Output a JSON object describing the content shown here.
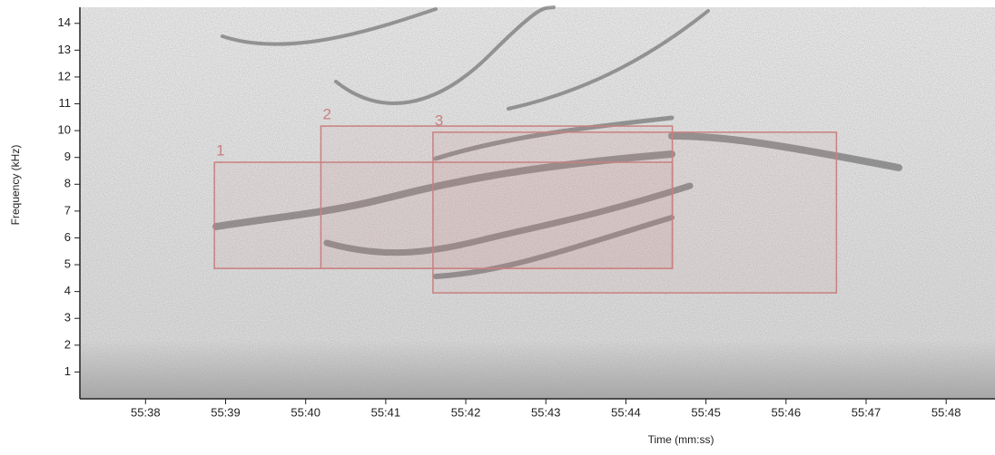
{
  "chart_data": {
    "type": "spectrogram",
    "xlabel": "Time (mm:ss)",
    "ylabel": "Frequency (kHz)",
    "xlim": [
      3337.18,
      3348.61
    ],
    "ylim": [
      0,
      14.6
    ],
    "xticks": [
      {
        "value": 3338,
        "label": "55:38"
      },
      {
        "value": 3339,
        "label": "55:39"
      },
      {
        "value": 3340,
        "label": "55:40"
      },
      {
        "value": 3341,
        "label": "55:41"
      },
      {
        "value": 3342,
        "label": "55:42"
      },
      {
        "value": 3343,
        "label": "55:43"
      },
      {
        "value": 3344,
        "label": "55:44"
      },
      {
        "value": 3345,
        "label": "55:45"
      },
      {
        "value": 3346,
        "label": "55:46"
      },
      {
        "value": 3347,
        "label": "55:47"
      },
      {
        "value": 3348,
        "label": "55:48"
      }
    ],
    "yticks": [
      1,
      2,
      3,
      4,
      5,
      6,
      7,
      8,
      9,
      10,
      11,
      12,
      13,
      14
    ],
    "box_color": "#c98080",
    "annotations": [
      {
        "label": "1",
        "x": [
          3338.86,
          3344.58
        ],
        "y": [
          4.86,
          8.82
        ]
      },
      {
        "label": "2",
        "x": [
          3340.19,
          3344.58
        ],
        "y": [
          4.86,
          10.17
        ]
      },
      {
        "label": "3",
        "x": [
          3341.59,
          3346.63
        ],
        "y": [
          3.95,
          9.94
        ]
      }
    ]
  }
}
